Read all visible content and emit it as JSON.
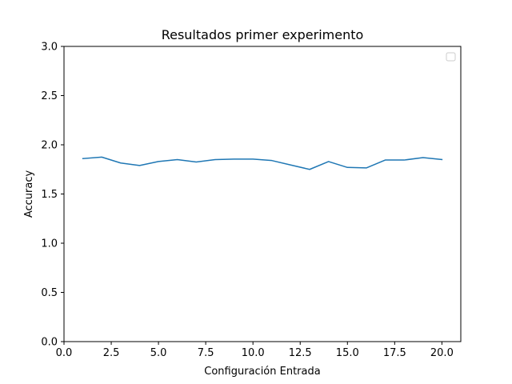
{
  "chart_data": {
    "type": "line",
    "title": "Resultados primer experimento",
    "xlabel": "Configuración Entrada",
    "ylabel": "Accuracy",
    "xlim": [
      0,
      21
    ],
    "ylim": [
      0,
      3
    ],
    "xticks": [
      0,
      2.5,
      5,
      7.5,
      10,
      12.5,
      15,
      17.5,
      20
    ],
    "xtick_labels": [
      "0.0",
      "2.5",
      "5.0",
      "7.5",
      "10.0",
      "12.5",
      "15.0",
      "17.5",
      "20.0"
    ],
    "yticks": [
      0,
      0.5,
      1,
      1.5,
      2,
      2.5,
      3
    ],
    "ytick_labels": [
      "0.0",
      "0.5",
      "1.0",
      "1.5",
      "2.0",
      "2.5",
      "3.0"
    ],
    "grid": false,
    "legend": {
      "placement": "top-right",
      "entries": []
    },
    "series": [
      {
        "color": "#1f77b4",
        "x": [
          1,
          2,
          3,
          4,
          5,
          6,
          7,
          8,
          9,
          10,
          11,
          12,
          13,
          14,
          15,
          16,
          17,
          18,
          19,
          20
        ],
        "y": [
          1.86,
          1.875,
          1.815,
          1.79,
          1.83,
          1.85,
          1.825,
          1.85,
          1.855,
          1.855,
          1.84,
          1.795,
          1.75,
          1.83,
          1.77,
          1.765,
          1.845,
          1.845,
          1.87,
          1.85
        ]
      }
    ]
  }
}
